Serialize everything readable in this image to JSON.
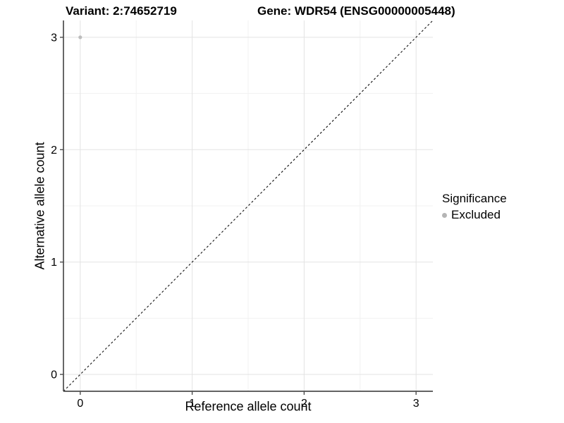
{
  "chart_data": {
    "type": "scatter",
    "title_left": "Variant: 2:74652719",
    "title_right": "Gene: WDR54 (ENSG00000005448)",
    "xlabel": "Reference allele count",
    "ylabel": "Alternative allele count",
    "xlim": [
      -0.15,
      3.15
    ],
    "ylim": [
      -0.15,
      3.15
    ],
    "xticks": [
      0,
      1,
      2,
      3
    ],
    "yticks": [
      0,
      1,
      2,
      3
    ],
    "xminor": [
      0.5,
      1.5,
      2.5
    ],
    "yminor": [
      0.5,
      1.5,
      2.5
    ],
    "grid": "major+minor",
    "background": "#ffffff",
    "identity_line": {
      "slope": 1,
      "intercept": 0,
      "linestyle": "dashed",
      "color": "#111111"
    },
    "series": [
      {
        "name": "Excluded",
        "color": "#bdbdbd",
        "points": [
          {
            "x": 0,
            "y": 3
          }
        ]
      }
    ],
    "legend": {
      "title": "Significance",
      "position": "right",
      "entries": [
        {
          "label": "Excluded",
          "color": "#b5b5b5"
        }
      ]
    },
    "colors": {
      "grid_major": "#e3e3e3",
      "grid_minor": "#f1f1f1",
      "axis_line": "#4d4d4d",
      "tick_mark": "#4d4d4d",
      "text": "#000000"
    }
  }
}
